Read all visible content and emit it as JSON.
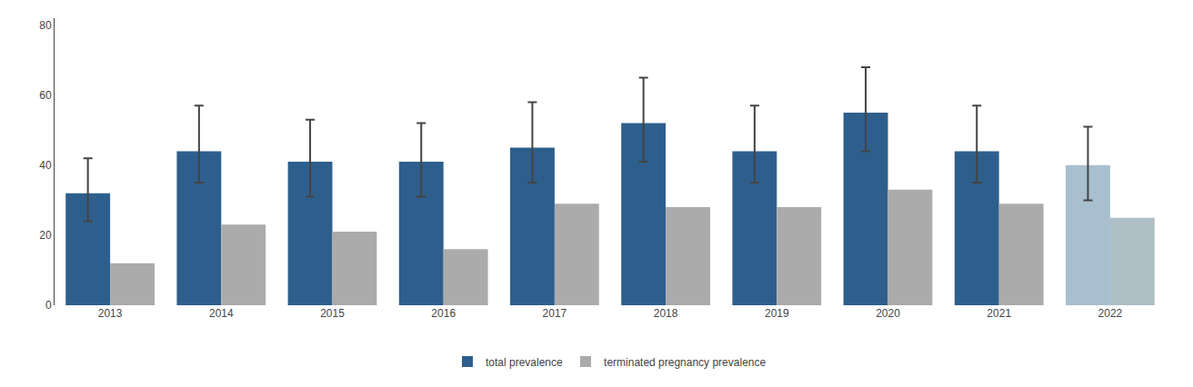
{
  "chart_data": {
    "type": "bar",
    "categories": [
      "2013",
      "2014",
      "2015",
      "2016",
      "2017",
      "2018",
      "2019",
      "2020",
      "2021",
      "2022"
    ],
    "series": [
      {
        "name": "total prevalence",
        "colors": [
          "#2E5F8C",
          "#2E5F8C",
          "#2E5F8C",
          "#2E5F8C",
          "#2E5F8C",
          "#2E5F8C",
          "#2E5F8C",
          "#2E5F8C",
          "#2E5F8C",
          "#A8BFCF"
        ],
        "values": [
          32,
          44,
          41,
          41,
          45,
          52,
          44,
          55,
          44,
          40
        ],
        "error_upper": [
          42,
          57,
          53,
          52,
          58,
          65,
          57,
          68,
          57,
          51
        ],
        "error_lower": [
          24,
          35,
          31,
          31,
          35,
          41,
          35,
          44,
          35,
          30
        ]
      },
      {
        "name": "terminated pregnancy prevalence",
        "colors": [
          "#ABABAB",
          "#ABABAB",
          "#ABABAB",
          "#ABABAB",
          "#ABABAB",
          "#ABABAB",
          "#ABABAB",
          "#ABABAB",
          "#ABABAB",
          "#B0BEC5"
        ],
        "values": [
          12,
          23,
          21,
          16,
          29,
          28,
          28,
          33,
          29,
          25
        ]
      }
    ],
    "ylim": [
      0,
      82
    ],
    "yticks": [
      0,
      20,
      40,
      60,
      80
    ],
    "grid": false,
    "legend": "bottom"
  }
}
